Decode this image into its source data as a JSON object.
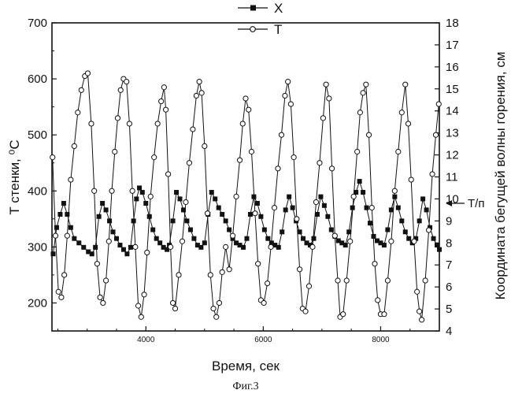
{
  "chart_data": {
    "type": "line",
    "title": "",
    "caption": "Фиг.3",
    "xlabel": "Время, сек",
    "ylabel_left": "T стенки, ⁰C",
    "ylabel_right": "Координата бегущей волны горения, см",
    "xlim": [
      2400,
      9000
    ],
    "ylim_left": [
      150,
      700
    ],
    "ylim_right": [
      4,
      18
    ],
    "x_ticks": [
      4000,
      6000,
      8000
    ],
    "y_left_ticks": [
      200,
      300,
      400,
      500,
      600,
      700
    ],
    "y_right_ticks": [
      4,
      5,
      6,
      7,
      8,
      9,
      10,
      11,
      12,
      13,
      14,
      15,
      16,
      17,
      18
    ],
    "legend": [
      "X",
      "T"
    ],
    "annotation": {
      "text": "T/п",
      "axis": "right",
      "y": 9.8
    },
    "series": [
      {
        "name": "X",
        "axis": "right",
        "marker": "filled-square",
        "points": [
          [
            2420,
            7.5
          ],
          [
            2480,
            8.7
          ],
          [
            2540,
            9.3
          ],
          [
            2600,
            9.8
          ],
          [
            2660,
            9.3
          ],
          [
            2720,
            8.7
          ],
          [
            2780,
            8.2
          ],
          [
            2860,
            8.0
          ],
          [
            2940,
            7.8
          ],
          [
            3020,
            7.6
          ],
          [
            3080,
            7.5
          ],
          [
            3140,
            7.8
          ],
          [
            3200,
            9.2
          ],
          [
            3260,
            9.8
          ],
          [
            3320,
            9.5
          ],
          [
            3380,
            9.0
          ],
          [
            3440,
            8.5
          ],
          [
            3500,
            8.2
          ],
          [
            3560,
            7.9
          ],
          [
            3620,
            7.7
          ],
          [
            3680,
            7.5
          ],
          [
            3740,
            7.8
          ],
          [
            3790,
            9.0
          ],
          [
            3840,
            10.0
          ],
          [
            3890,
            10.5
          ],
          [
            3940,
            10.3
          ],
          [
            4000,
            9.8
          ],
          [
            4060,
            9.2
          ],
          [
            4120,
            8.6
          ],
          [
            4180,
            8.2
          ],
          [
            4240,
            8.0
          ],
          [
            4300,
            7.8
          ],
          [
            4360,
            7.7
          ],
          [
            4400,
            7.9
          ],
          [
            4460,
            9.0
          ],
          [
            4520,
            10.3
          ],
          [
            4580,
            10.0
          ],
          [
            4640,
            9.5
          ],
          [
            4700,
            9.0
          ],
          [
            4760,
            8.6
          ],
          [
            4820,
            8.2
          ],
          [
            4880,
            7.9
          ],
          [
            4940,
            7.8
          ],
          [
            5000,
            8.0
          ],
          [
            5060,
            9.3
          ],
          [
            5120,
            10.3
          ],
          [
            5180,
            10.0
          ],
          [
            5240,
            9.6
          ],
          [
            5300,
            9.3
          ],
          [
            5360,
            9.0
          ],
          [
            5420,
            8.6
          ],
          [
            5480,
            8.2
          ],
          [
            5540,
            8.0
          ],
          [
            5600,
            7.9
          ],
          [
            5660,
            7.8
          ],
          [
            5720,
            8.2
          ],
          [
            5780,
            9.3
          ],
          [
            5840,
            10.1
          ],
          [
            5900,
            9.8
          ],
          [
            5960,
            9.2
          ],
          [
            6020,
            8.6
          ],
          [
            6080,
            8.2
          ],
          [
            6140,
            8.0
          ],
          [
            6200,
            7.9
          ],
          [
            6260,
            7.8
          ],
          [
            6320,
            8.5
          ],
          [
            6380,
            9.5
          ],
          [
            6440,
            10.1
          ],
          [
            6500,
            9.6
          ],
          [
            6560,
            9.0
          ],
          [
            6620,
            8.5
          ],
          [
            6680,
            8.2
          ],
          [
            6740,
            8.0
          ],
          [
            6800,
            7.9
          ],
          [
            6860,
            8.2
          ],
          [
            6920,
            9.3
          ],
          [
            6980,
            10.1
          ],
          [
            7040,
            9.7
          ],
          [
            7100,
            9.2
          ],
          [
            7160,
            8.6
          ],
          [
            7220,
            8.3
          ],
          [
            7280,
            8.1
          ],
          [
            7340,
            8.0
          ],
          [
            7400,
            7.9
          ],
          [
            7460,
            8.5
          ],
          [
            7520,
            9.6
          ],
          [
            7580,
            10.3
          ],
          [
            7640,
            10.8
          ],
          [
            7700,
            10.3
          ],
          [
            7760,
            9.6
          ],
          [
            7820,
            8.9
          ],
          [
            7880,
            8.3
          ],
          [
            7940,
            8.1
          ],
          [
            8000,
            8.0
          ],
          [
            8060,
            7.9
          ],
          [
            8120,
            8.6
          ],
          [
            8180,
            9.5
          ],
          [
            8240,
            10.1
          ],
          [
            8300,
            9.6
          ],
          [
            8360,
            9.0
          ],
          [
            8420,
            8.5
          ],
          [
            8480,
            8.2
          ],
          [
            8540,
            8.0
          ],
          [
            8600,
            8.2
          ],
          [
            8660,
            9.0
          ],
          [
            8720,
            10.0
          ],
          [
            8780,
            9.5
          ],
          [
            8840,
            8.7
          ],
          [
            8900,
            8.2
          ],
          [
            8960,
            7.9
          ],
          [
            9000,
            7.7
          ]
        ]
      },
      {
        "name": "T",
        "axis": "left",
        "marker": "open-circle",
        "points": [
          [
            2410,
            460
          ],
          [
            2460,
            320
          ],
          [
            2510,
            220
          ],
          [
            2560,
            210
          ],
          [
            2610,
            250
          ],
          [
            2660,
            320
          ],
          [
            2720,
            420
          ],
          [
            2780,
            480
          ],
          [
            2840,
            540
          ],
          [
            2900,
            580
          ],
          [
            2960,
            605
          ],
          [
            3010,
            610
          ],
          [
            3070,
            520
          ],
          [
            3120,
            400
          ],
          [
            3170,
            270
          ],
          [
            3220,
            210
          ],
          [
            3270,
            200
          ],
          [
            3320,
            240
          ],
          [
            3370,
            310
          ],
          [
            3420,
            400
          ],
          [
            3470,
            470
          ],
          [
            3520,
            530
          ],
          [
            3570,
            580
          ],
          [
            3620,
            600
          ],
          [
            3670,
            595
          ],
          [
            3720,
            520
          ],
          [
            3770,
            400
          ],
          [
            3820,
            300
          ],
          [
            3870,
            195
          ],
          [
            3920,
            175
          ],
          [
            3970,
            215
          ],
          [
            4020,
            290
          ],
          [
            4080,
            390
          ],
          [
            4140,
            460
          ],
          [
            4200,
            520
          ],
          [
            4260,
            560
          ],
          [
            4310,
            585
          ],
          [
            4340,
            545
          ],
          [
            4380,
            430
          ],
          [
            4420,
            300
          ],
          [
            4460,
            200
          ],
          [
            4500,
            190
          ],
          [
            4560,
            250
          ],
          [
            4620,
            310
          ],
          [
            4680,
            380
          ],
          [
            4740,
            450
          ],
          [
            4800,
            510
          ],
          [
            4860,
            570
          ],
          [
            4910,
            595
          ],
          [
            4950,
            575
          ],
          [
            5000,
            480
          ],
          [
            5050,
            360
          ],
          [
            5100,
            250
          ],
          [
            5150,
            190
          ],
          [
            5200,
            175
          ],
          [
            5250,
            200
          ],
          [
            5300,
            255
          ],
          [
            5360,
            300
          ],
          [
            5420,
            260
          ],
          [
            5480,
            320
          ],
          [
            5540,
            390
          ],
          [
            5600,
            455
          ],
          [
            5650,
            520
          ],
          [
            5700,
            565
          ],
          [
            5750,
            545
          ],
          [
            5800,
            470
          ],
          [
            5860,
            360
          ],
          [
            5910,
            270
          ],
          [
            5960,
            205
          ],
          [
            6010,
            200
          ],
          [
            6070,
            235
          ],
          [
            6130,
            300
          ],
          [
            6190,
            370
          ],
          [
            6250,
            440
          ],
          [
            6310,
            500
          ],
          [
            6370,
            570
          ],
          [
            6420,
            595
          ],
          [
            6470,
            555
          ],
          [
            6520,
            460
          ],
          [
            6570,
            350
          ],
          [
            6620,
            260
          ],
          [
            6670,
            190
          ],
          [
            6720,
            185
          ],
          [
            6780,
            230
          ],
          [
            6840,
            300
          ],
          [
            6900,
            380
          ],
          [
            6960,
            450
          ],
          [
            7020,
            530
          ],
          [
            7070,
            590
          ],
          [
            7120,
            565
          ],
          [
            7170,
            440
          ],
          [
            7220,
            320
          ],
          [
            7270,
            240
          ],
          [
            7310,
            175
          ],
          [
            7360,
            180
          ],
          [
            7420,
            240
          ],
          [
            7480,
            310
          ],
          [
            7540,
            390
          ],
          [
            7600,
            470
          ],
          [
            7650,
            540
          ],
          [
            7700,
            575
          ],
          [
            7750,
            590
          ],
          [
            7800,
            500
          ],
          [
            7850,
            370
          ],
          [
            7900,
            270
          ],
          [
            7950,
            205
          ],
          [
            8000,
            180
          ],
          [
            8060,
            180
          ],
          [
            8120,
            240
          ],
          [
            8180,
            310
          ],
          [
            8240,
            400
          ],
          [
            8300,
            470
          ],
          [
            8360,
            540
          ],
          [
            8420,
            590
          ],
          [
            8470,
            520
          ],
          [
            8520,
            420
          ],
          [
            8570,
            310
          ],
          [
            8620,
            220
          ],
          [
            8660,
            185
          ],
          [
            8700,
            170
          ],
          [
            8760,
            240
          ],
          [
            8820,
            330
          ],
          [
            8880,
            430
          ],
          [
            8940,
            500
          ],
          [
            8990,
            555
          ]
        ]
      }
    ]
  }
}
